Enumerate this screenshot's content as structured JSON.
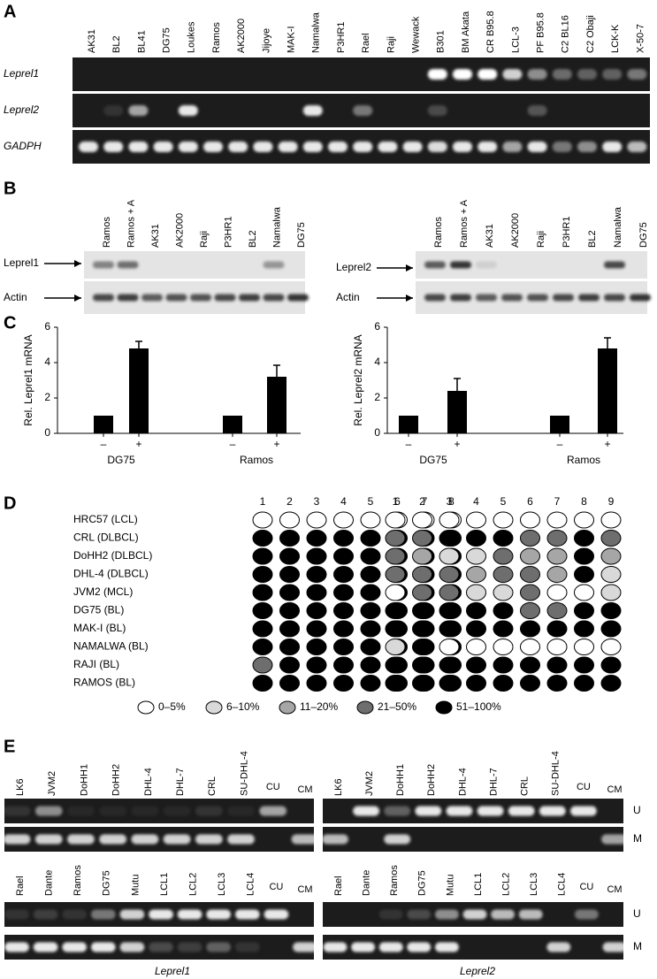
{
  "panel_a": {
    "label": "A",
    "lanes": [
      "AK31",
      "BL2",
      "BL41",
      "DG75",
      "Loukes",
      "Ramos",
      "AK2000",
      "Jijoye",
      "MAK-I",
      "Namalwa",
      "P3HR1",
      "Rael",
      "Raji",
      "Wewack",
      "B301",
      "BM Akata",
      "CR B95.8",
      "LCL-3",
      "PF B95.8",
      "C2 BL16",
      "C2 Obaji",
      "LCK-K",
      "X-50-7"
    ],
    "rows": [
      "Leprel1",
      "Leprel2",
      "GADPH"
    ]
  },
  "panel_b": {
    "label": "B",
    "blots": [
      {
        "lanes": [
          "Ramos",
          "Ramos + A",
          "AK31",
          "AK2000",
          "Raji",
          "P3HR1",
          "BL2",
          "Namalwa",
          "DG75"
        ],
        "rows": [
          "Leprel1",
          "Actin"
        ]
      },
      {
        "lanes": [
          "Ramos",
          "Ramos + A",
          "AK31",
          "AK2000",
          "Raji",
          "P3HR1",
          "BL2",
          "Namalwa",
          "DG75"
        ],
        "rows": [
          "Leprel2",
          "Actin"
        ]
      }
    ]
  },
  "panel_c": {
    "label": "C"
  },
  "chart_data": [
    {
      "type": "bar",
      "ylabel": "Rel. Leprel1 mRNA",
      "categories": [
        "–",
        "+",
        "–",
        "+"
      ],
      "groups": [
        "DG75",
        "Ramos"
      ],
      "values": [
        1,
        4.8,
        1,
        3.2
      ],
      "errors": [
        0,
        0.4,
        0,
        0.65
      ],
      "color": "#000000",
      "ylim": [
        0,
        6
      ],
      "yticks": [
        0,
        2,
        4,
        6
      ]
    },
    {
      "type": "bar",
      "ylabel": "Rel. Leprel2 mRNA",
      "categories": [
        "–",
        "+",
        "–",
        "+"
      ],
      "groups": [
        "DG75",
        "Ramos"
      ],
      "values": [
        1,
        2.4,
        1,
        4.8
      ],
      "errors": [
        0,
        0.7,
        0,
        0.6
      ],
      "color": "#000000",
      "ylim": [
        0,
        6
      ],
      "yticks": [
        0,
        2,
        4,
        6
      ]
    }
  ],
  "panel_d": {
    "label": "D",
    "rows": [
      "HRC57 (LCL)",
      "CRL (DLBCL)",
      "DoHH2 (DLBCL)",
      "DHL-4 (DLBCL)",
      "JVM2 (MCL)",
      "DG75 (BL)",
      "MAK-I (BL)",
      "NAMALWA (BL)",
      "RAJI (BL)",
      "RAMOS (BL)"
    ],
    "left_columns": [
      1,
      2,
      3,
      4,
      5,
      6,
      7,
      8
    ],
    "right_columns": [
      1,
      2,
      3,
      4,
      5,
      6,
      7,
      8,
      9
    ],
    "legend": [
      "0–5%",
      "6–10%",
      "11–20%",
      "21–50%",
      "51–100%"
    ]
  },
  "panel_e": {
    "label": "E",
    "gels": [
      {
        "lanes": [
          "LK6",
          "JVM2",
          "DoHH1",
          "DoHH2",
          "DHL-4",
          "DHL-7",
          "CRL",
          "SU-DHL-4",
          "CU",
          "CM"
        ]
      },
      {
        "lanes": [
          "LK6",
          "JVM2",
          "DoHH1",
          "DoHH2",
          "DHL-4",
          "DHL-7",
          "CRL",
          "SU-DHL-4",
          "CU",
          "CM"
        ]
      },
      {
        "lanes": [
          "Rael",
          "Dante",
          "Ramos",
          "DG75",
          "Mutu",
          "LCL1",
          "LCL2",
          "LCL3",
          "LCL4",
          "CU",
          "CM"
        ]
      },
      {
        "lanes": [
          "Rael",
          "Dante",
          "Ramos",
          "DG75",
          "Mutu",
          "LCL1",
          "LCL2",
          "LCL3",
          "LCL4",
          "CU",
          "CM"
        ]
      }
    ],
    "row_labels": [
      "U",
      "M"
    ],
    "captions": [
      "Leprel1",
      "Leprel2"
    ]
  }
}
